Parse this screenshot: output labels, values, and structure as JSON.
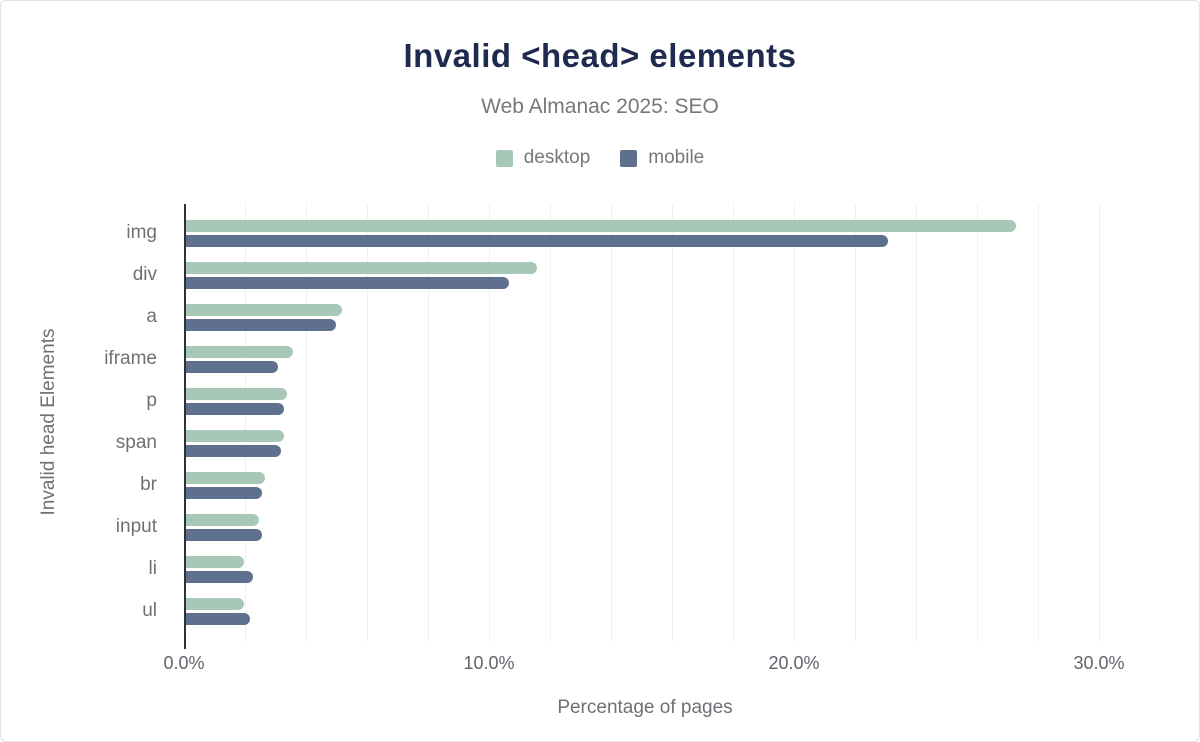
{
  "header": {
    "title": "Invalid <head> elements",
    "subtitle": "Web Almanac 2025: SEO",
    "title_color": "#1e2b4e"
  },
  "legend": {
    "items": [
      {
        "label": "desktop",
        "color": "#a7c8b6"
      },
      {
        "label": "mobile",
        "color": "#5f708e"
      }
    ]
  },
  "chart_data": {
    "type": "bar",
    "orientation": "horizontal",
    "title": "Invalid <head> elements",
    "subtitle": "Web Almanac 2025: SEO",
    "xlabel": "Percentage of pages",
    "ylabel": "Invalid head Elements",
    "categories": [
      "img",
      "div",
      "a",
      "iframe",
      "p",
      "span",
      "br",
      "input",
      "li",
      "ul"
    ],
    "series": [
      {
        "name": "desktop",
        "color": "#a7c8b6",
        "values": [
          27.2,
          11.5,
          5.1,
          3.5,
          3.3,
          3.2,
          2.6,
          2.4,
          1.9,
          1.9
        ]
      },
      {
        "name": "mobile",
        "color": "#5f708e",
        "values": [
          23.0,
          10.6,
          4.9,
          3.0,
          3.2,
          3.1,
          2.5,
          2.5,
          2.2,
          2.1
        ]
      }
    ],
    "value_unit": "%",
    "xlim": [
      0,
      30.2
    ],
    "x_ticks": [
      {
        "value": 0,
        "label": "0.0%"
      },
      {
        "value": 10,
        "label": "10.0%"
      },
      {
        "value": 20,
        "label": "20.0%"
      },
      {
        "value": 30,
        "label": "30.0%"
      }
    ],
    "grid": true,
    "gridline_step": 2,
    "gridline_color": "#f0f0f0",
    "axis_line_color": "#2f3134",
    "legend_position": "top"
  }
}
